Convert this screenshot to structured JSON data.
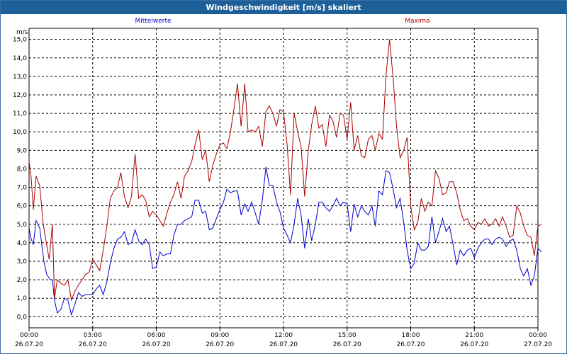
{
  "window": {
    "title": "Windgeschwindigkeit [m/s] skaliert"
  },
  "chart_data": {
    "type": "line",
    "title": "Windgeschwindigkeit [m/s] skaliert",
    "ylabel": "m/s",
    "xlabel": "",
    "ylim": [
      -0.6,
      15.6
    ],
    "y_ticks": [
      "0,0",
      "1,0",
      "2,0",
      "3,0",
      "4,0",
      "5,0",
      "6,0",
      "7,0",
      "8,0",
      "9,0",
      "10,0",
      "11,0",
      "12,0",
      "13,0",
      "14,0",
      "15,0"
    ],
    "x_range_hours": [
      0,
      24
    ],
    "x_ticks": [
      {
        "time": "00:00",
        "date": "26.07.20"
      },
      {
        "time": "03:00",
        "date": "26.07.20"
      },
      {
        "time": "06:00",
        "date": "26.07.20"
      },
      {
        "time": "09:00",
        "date": "26.07.20"
      },
      {
        "time": "12:00",
        "date": "26.07.20"
      },
      {
        "time": "15:00",
        "date": "26.07.20"
      },
      {
        "time": "18:00",
        "date": "26.07.20"
      },
      {
        "time": "21:00",
        "date": "26.07.20"
      },
      {
        "time": "00:00",
        "date": "27.07.20"
      }
    ],
    "grid": true,
    "series": [
      {
        "name": "Mittelwerte",
        "color": "#0000cc",
        "label_position": "left",
        "points": [
          [
            0.0,
            4.8
          ],
          [
            0.1,
            4.2
          ],
          [
            0.2,
            3.9
          ],
          [
            0.33,
            5.2
          ],
          [
            0.5,
            4.8
          ],
          [
            0.7,
            3.0
          ],
          [
            0.83,
            2.3
          ],
          [
            1.0,
            2.0
          ],
          [
            1.1,
            2.0
          ],
          [
            1.2,
            0.9
          ],
          [
            1.33,
            0.2
          ],
          [
            1.5,
            0.4
          ],
          [
            1.67,
            1.0
          ],
          [
            1.83,
            0.9
          ],
          [
            2.0,
            0.1
          ],
          [
            2.17,
            0.7
          ],
          [
            2.33,
            1.3
          ],
          [
            2.5,
            1.1
          ],
          [
            2.67,
            1.2
          ],
          [
            2.83,
            1.2
          ],
          [
            3.0,
            1.2
          ],
          [
            3.17,
            1.5
          ],
          [
            3.33,
            1.7
          ],
          [
            3.5,
            1.2
          ],
          [
            3.67,
            1.9
          ],
          [
            3.83,
            2.9
          ],
          [
            4.0,
            3.7
          ],
          [
            4.17,
            4.2
          ],
          [
            4.33,
            4.3
          ],
          [
            4.5,
            4.6
          ],
          [
            4.67,
            3.9
          ],
          [
            4.83,
            4.0
          ],
          [
            5.0,
            4.7
          ],
          [
            5.17,
            4.1
          ],
          [
            5.33,
            3.9
          ],
          [
            5.5,
            4.2
          ],
          [
            5.67,
            3.9
          ],
          [
            5.83,
            2.6
          ],
          [
            6.0,
            2.7
          ],
          [
            6.17,
            3.5
          ],
          [
            6.33,
            3.3
          ],
          [
            6.5,
            3.4
          ],
          [
            6.67,
            3.4
          ],
          [
            6.83,
            4.4
          ],
          [
            7.0,
            5.0
          ],
          [
            7.17,
            5.0
          ],
          [
            7.33,
            5.2
          ],
          [
            7.5,
            5.3
          ],
          [
            7.67,
            5.4
          ],
          [
            7.83,
            6.3
          ],
          [
            8.0,
            6.3
          ],
          [
            8.17,
            5.6
          ],
          [
            8.33,
            5.7
          ],
          [
            8.5,
            4.7
          ],
          [
            8.67,
            4.8
          ],
          [
            8.83,
            5.3
          ],
          [
            9.0,
            5.8
          ],
          [
            9.17,
            6.2
          ],
          [
            9.33,
            6.9
          ],
          [
            9.5,
            6.7
          ],
          [
            9.67,
            6.8
          ],
          [
            9.83,
            6.8
          ],
          [
            10.0,
            5.5
          ],
          [
            10.17,
            6.1
          ],
          [
            10.33,
            5.7
          ],
          [
            10.5,
            6.2
          ],
          [
            10.67,
            5.6
          ],
          [
            10.83,
            5.0
          ],
          [
            11.0,
            6.3
          ],
          [
            11.17,
            8.1
          ],
          [
            11.33,
            7.1
          ],
          [
            11.5,
            7.1
          ],
          [
            11.67,
            6.2
          ],
          [
            11.83,
            5.7
          ],
          [
            12.0,
            4.8
          ],
          [
            12.17,
            4.4
          ],
          [
            12.33,
            4.0
          ],
          [
            12.5,
            5.0
          ],
          [
            12.67,
            6.4
          ],
          [
            12.83,
            5.5
          ],
          [
            13.0,
            3.7
          ],
          [
            13.17,
            5.3
          ],
          [
            13.33,
            4.1
          ],
          [
            13.5,
            5.0
          ],
          [
            13.67,
            6.2
          ],
          [
            13.83,
            6.2
          ],
          [
            14.0,
            5.9
          ],
          [
            14.17,
            5.7
          ],
          [
            14.33,
            6.0
          ],
          [
            14.5,
            6.4
          ],
          [
            14.67,
            6.0
          ],
          [
            14.83,
            6.2
          ],
          [
            15.0,
            6.1
          ],
          [
            15.17,
            4.6
          ],
          [
            15.33,
            6.1
          ],
          [
            15.5,
            5.4
          ],
          [
            15.67,
            6.0
          ],
          [
            15.83,
            5.7
          ],
          [
            16.0,
            5.5
          ],
          [
            16.17,
            6.0
          ],
          [
            16.33,
            4.9
          ],
          [
            16.5,
            6.8
          ],
          [
            16.67,
            6.6
          ],
          [
            16.83,
            7.9
          ],
          [
            17.0,
            7.8
          ],
          [
            17.17,
            6.9
          ],
          [
            17.33,
            5.9
          ],
          [
            17.5,
            6.4
          ],
          [
            17.67,
            5.1
          ],
          [
            17.83,
            3.6
          ],
          [
            18.0,
            2.6
          ],
          [
            18.17,
            2.9
          ],
          [
            18.33,
            4.0
          ],
          [
            18.5,
            3.6
          ],
          [
            18.67,
            3.6
          ],
          [
            18.83,
            3.8
          ],
          [
            19.0,
            5.4
          ],
          [
            19.17,
            4.0
          ],
          [
            19.33,
            4.6
          ],
          [
            19.5,
            5.3
          ],
          [
            19.67,
            4.6
          ],
          [
            19.83,
            4.9
          ],
          [
            20.0,
            3.9
          ],
          [
            20.17,
            2.8
          ],
          [
            20.33,
            3.6
          ],
          [
            20.5,
            3.3
          ],
          [
            20.67,
            3.6
          ],
          [
            20.83,
            3.7
          ],
          [
            21.0,
            3.2
          ],
          [
            21.17,
            3.7
          ],
          [
            21.33,
            4.0
          ],
          [
            21.5,
            4.2
          ],
          [
            21.67,
            4.2
          ],
          [
            21.83,
            3.9
          ],
          [
            22.0,
            4.2
          ],
          [
            22.17,
            4.3
          ],
          [
            22.33,
            4.2
          ],
          [
            22.5,
            3.8
          ],
          [
            22.67,
            4.1
          ],
          [
            22.83,
            4.2
          ],
          [
            23.0,
            3.6
          ],
          [
            23.17,
            2.6
          ],
          [
            23.33,
            2.2
          ],
          [
            23.5,
            2.6
          ],
          [
            23.67,
            1.7
          ],
          [
            23.83,
            2.2
          ],
          [
            24.0,
            3.7
          ],
          [
            24.17,
            3.5
          ]
        ]
      },
      {
        "name": "Maxima",
        "color": "#aa0000",
        "label_position": "right",
        "points": [
          [
            0.0,
            8.4
          ],
          [
            0.1,
            7.5
          ],
          [
            0.2,
            5.8
          ],
          [
            0.33,
            7.6
          ],
          [
            0.5,
            7.1
          ],
          [
            0.67,
            5.0
          ],
          [
            0.83,
            3.9
          ],
          [
            0.95,
            3.1
          ],
          [
            1.1,
            5.0
          ],
          [
            1.2,
            1.0
          ],
          [
            1.33,
            2.0
          ],
          [
            1.5,
            1.8
          ],
          [
            1.67,
            1.7
          ],
          [
            1.83,
            2.0
          ],
          [
            2.0,
            0.9
          ],
          [
            2.17,
            1.4
          ],
          [
            2.33,
            1.7
          ],
          [
            2.5,
            2.0
          ],
          [
            2.67,
            2.3
          ],
          [
            2.83,
            2.4
          ],
          [
            3.0,
            3.1
          ],
          [
            3.17,
            2.8
          ],
          [
            3.33,
            2.5
          ],
          [
            3.5,
            3.6
          ],
          [
            3.67,
            4.9
          ],
          [
            3.83,
            6.4
          ],
          [
            4.0,
            6.8
          ],
          [
            4.17,
            7.0
          ],
          [
            4.33,
            7.8
          ],
          [
            4.5,
            6.5
          ],
          [
            4.67,
            5.9
          ],
          [
            4.83,
            6.5
          ],
          [
            5.0,
            8.8
          ],
          [
            5.17,
            6.4
          ],
          [
            5.33,
            6.6
          ],
          [
            5.5,
            6.3
          ],
          [
            5.67,
            5.4
          ],
          [
            5.83,
            5.7
          ],
          [
            6.0,
            5.5
          ],
          [
            6.17,
            5.2
          ],
          [
            6.33,
            4.9
          ],
          [
            6.5,
            5.6
          ],
          [
            6.67,
            6.2
          ],
          [
            6.83,
            6.6
          ],
          [
            7.0,
            7.3
          ],
          [
            7.17,
            6.4
          ],
          [
            7.33,
            7.6
          ],
          [
            7.5,
            7.9
          ],
          [
            7.67,
            8.4
          ],
          [
            7.83,
            9.3
          ],
          [
            8.0,
            10.1
          ],
          [
            8.17,
            8.5
          ],
          [
            8.33,
            9.0
          ],
          [
            8.5,
            7.3
          ],
          [
            8.67,
            8.2
          ],
          [
            8.83,
            8.8
          ],
          [
            9.0,
            9.3
          ],
          [
            9.17,
            9.4
          ],
          [
            9.33,
            9.1
          ],
          [
            9.5,
            10.0
          ],
          [
            9.67,
            11.3
          ],
          [
            9.83,
            12.6
          ],
          [
            10.0,
            10.3
          ],
          [
            10.17,
            12.6
          ],
          [
            10.33,
            10.0
          ],
          [
            10.5,
            10.1
          ],
          [
            10.67,
            10.0
          ],
          [
            10.83,
            10.3
          ],
          [
            11.0,
            9.2
          ],
          [
            11.17,
            11.1
          ],
          [
            11.33,
            11.4
          ],
          [
            11.5,
            11.0
          ],
          [
            11.67,
            10.3
          ],
          [
            11.83,
            11.2
          ],
          [
            12.0,
            11.1
          ],
          [
            12.17,
            9.3
          ],
          [
            12.33,
            6.6
          ],
          [
            12.5,
            11.0
          ],
          [
            12.67,
            10.0
          ],
          [
            12.83,
            9.2
          ],
          [
            13.0,
            6.5
          ],
          [
            13.17,
            9.0
          ],
          [
            13.33,
            10.4
          ],
          [
            13.5,
            11.4
          ],
          [
            13.67,
            10.2
          ],
          [
            13.83,
            10.4
          ],
          [
            14.0,
            9.2
          ],
          [
            14.17,
            10.9
          ],
          [
            14.33,
            10.6
          ],
          [
            14.5,
            9.7
          ],
          [
            14.67,
            11.0
          ],
          [
            14.83,
            10.9
          ],
          [
            15.0,
            9.6
          ],
          [
            15.17,
            11.6
          ],
          [
            15.33,
            9.0
          ],
          [
            15.5,
            9.8
          ],
          [
            15.67,
            8.7
          ],
          [
            15.83,
            8.6
          ],
          [
            16.0,
            9.6
          ],
          [
            16.17,
            9.8
          ],
          [
            16.33,
            9.0
          ],
          [
            16.5,
            9.9
          ],
          [
            16.67,
            9.6
          ],
          [
            16.83,
            13.0
          ],
          [
            17.0,
            15.0
          ],
          [
            17.17,
            12.9
          ],
          [
            17.33,
            10.3
          ],
          [
            17.5,
            8.6
          ],
          [
            17.67,
            9.0
          ],
          [
            17.83,
            9.7
          ],
          [
            18.0,
            6.0
          ],
          [
            18.17,
            4.7
          ],
          [
            18.33,
            5.1
          ],
          [
            18.5,
            6.4
          ],
          [
            18.67,
            5.7
          ],
          [
            18.83,
            6.2
          ],
          [
            19.0,
            6.0
          ],
          [
            19.17,
            7.9
          ],
          [
            19.33,
            7.5
          ],
          [
            19.5,
            6.6
          ],
          [
            19.67,
            6.7
          ],
          [
            19.83,
            7.3
          ],
          [
            20.0,
            7.3
          ],
          [
            20.17,
            6.7
          ],
          [
            20.33,
            5.8
          ],
          [
            20.5,
            5.2
          ],
          [
            20.67,
            5.3
          ],
          [
            20.83,
            4.9
          ],
          [
            21.0,
            4.7
          ],
          [
            21.17,
            5.1
          ],
          [
            21.33,
            5.0
          ],
          [
            21.5,
            5.3
          ],
          [
            21.67,
            4.9
          ],
          [
            21.83,
            5.0
          ],
          [
            22.0,
            5.3
          ],
          [
            22.17,
            4.9
          ],
          [
            22.33,
            5.4
          ],
          [
            22.5,
            4.9
          ],
          [
            22.67,
            4.3
          ],
          [
            22.83,
            4.4
          ],
          [
            23.0,
            6.0
          ],
          [
            23.17,
            5.6
          ],
          [
            23.33,
            4.9
          ],
          [
            23.5,
            4.4
          ],
          [
            23.67,
            4.3
          ],
          [
            23.83,
            3.3
          ],
          [
            24.0,
            4.9
          ],
          [
            24.17,
            5.0
          ]
        ]
      }
    ]
  }
}
